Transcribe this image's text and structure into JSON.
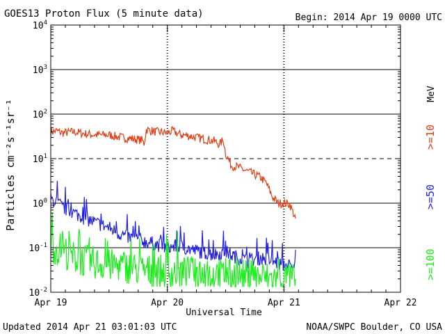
{
  "header": {
    "title": "GOES13 Proton Flux (5 minute data)",
    "begin": "Begin: 2014 Apr 19 0000 UTC"
  },
  "footer": {
    "updated": "Updated 2014 Apr 21 03:01:03 UTC",
    "source": "NOAA/SWPC Boulder, CO USA"
  },
  "chart_data": {
    "type": "line",
    "title": "GOES13 Proton Flux (5 minute data)",
    "xlabel": "Universal Time",
    "ylabel": "Particles cm⁻²s⁻¹sr⁻¹",
    "yscale": "log",
    "ylim": [
      0.01,
      10000
    ],
    "xlim": [
      0,
      3
    ],
    "x_unit": "days since 2014 Apr 19 0000 UTC",
    "x_ticks": [
      {
        "value": 0,
        "label": "Apr 19"
      },
      {
        "value": 1,
        "label": "Apr 20"
      },
      {
        "value": 2,
        "label": "Apr 21"
      },
      {
        "value": 3,
        "label": "Apr 22"
      }
    ],
    "y_ticks": [
      {
        "value": 0.01,
        "base": "10",
        "exp": "-2"
      },
      {
        "value": 0.1,
        "base": "10",
        "exp": "-1"
      },
      {
        "value": 1,
        "base": "10",
        "exp": "0"
      },
      {
        "value": 10,
        "base": "10",
        "exp": "1"
      },
      {
        "value": 100,
        "base": "10",
        "exp": "2"
      },
      {
        "value": 1000,
        "base": "10",
        "exp": "3"
      },
      {
        "value": 10000,
        "base": "10",
        "exp": "4"
      }
    ],
    "threshold_line": {
      "value": 10,
      "style": "dashed"
    },
    "unit_label": "MeV",
    "series": [
      {
        "name": ">=10",
        "color": "#e03c10",
        "x": [
          0,
          0.05,
          0.1,
          0.2,
          0.3,
          0.4,
          0.5,
          0.6,
          0.7,
          0.78,
          0.8,
          0.82,
          0.9,
          1.0,
          1.05,
          1.1,
          1.2,
          1.3,
          1.4,
          1.45,
          1.48,
          1.5,
          1.55,
          1.6,
          1.7,
          1.8,
          1.85,
          1.9,
          1.95,
          2.0,
          2.05,
          2.1
        ],
        "values": [
          40,
          42,
          38,
          40,
          36,
          34,
          34,
          30,
          28,
          26,
          22,
          45,
          40,
          38,
          42,
          35,
          32,
          28,
          25,
          21,
          27,
          13,
          7,
          6.5,
          5,
          3.8,
          2.8,
          1.4,
          1.0,
          1.0,
          0.95,
          0.45
        ]
      },
      {
        "name": ">=50",
        "color": "#1e1ee6",
        "x": [
          0,
          0.05,
          0.1,
          0.2,
          0.3,
          0.4,
          0.5,
          0.6,
          0.7,
          0.8,
          0.9,
          1.0,
          1.1,
          1.2,
          1.3,
          1.4,
          1.5,
          1.6,
          1.7,
          1.8,
          1.9,
          2.0,
          2.05,
          2.08,
          2.1
        ],
        "values": [
          1.2,
          1.1,
          0.8,
          0.6,
          0.45,
          0.35,
          0.28,
          0.2,
          0.16,
          0.14,
          0.12,
          0.1,
          0.11,
          0.09,
          0.08,
          0.07,
          0.08,
          0.06,
          0.05,
          0.06,
          0.05,
          0.04,
          0.04,
          0.03,
          0.09
        ]
      },
      {
        "name": ">=100",
        "color": "#18ee18",
        "x": [
          0,
          0.05,
          0.1,
          0.15,
          0.2,
          0.3,
          0.4,
          0.5,
          0.6,
          0.7,
          0.8,
          0.9,
          1.0,
          1.1,
          1.2,
          1.3,
          1.4,
          1.5,
          1.6,
          1.7,
          1.8,
          1.9,
          2.0,
          2.05,
          2.1
        ],
        "values": [
          0.12,
          0.09,
          0.1,
          0.07,
          0.06,
          0.05,
          0.045,
          0.04,
          0.04,
          0.035,
          0.03,
          0.03,
          0.028,
          0.028,
          0.027,
          0.025,
          0.025,
          0.024,
          0.024,
          0.022,
          0.022,
          0.02,
          0.02,
          0.02,
          0.02
        ]
      }
    ]
  }
}
